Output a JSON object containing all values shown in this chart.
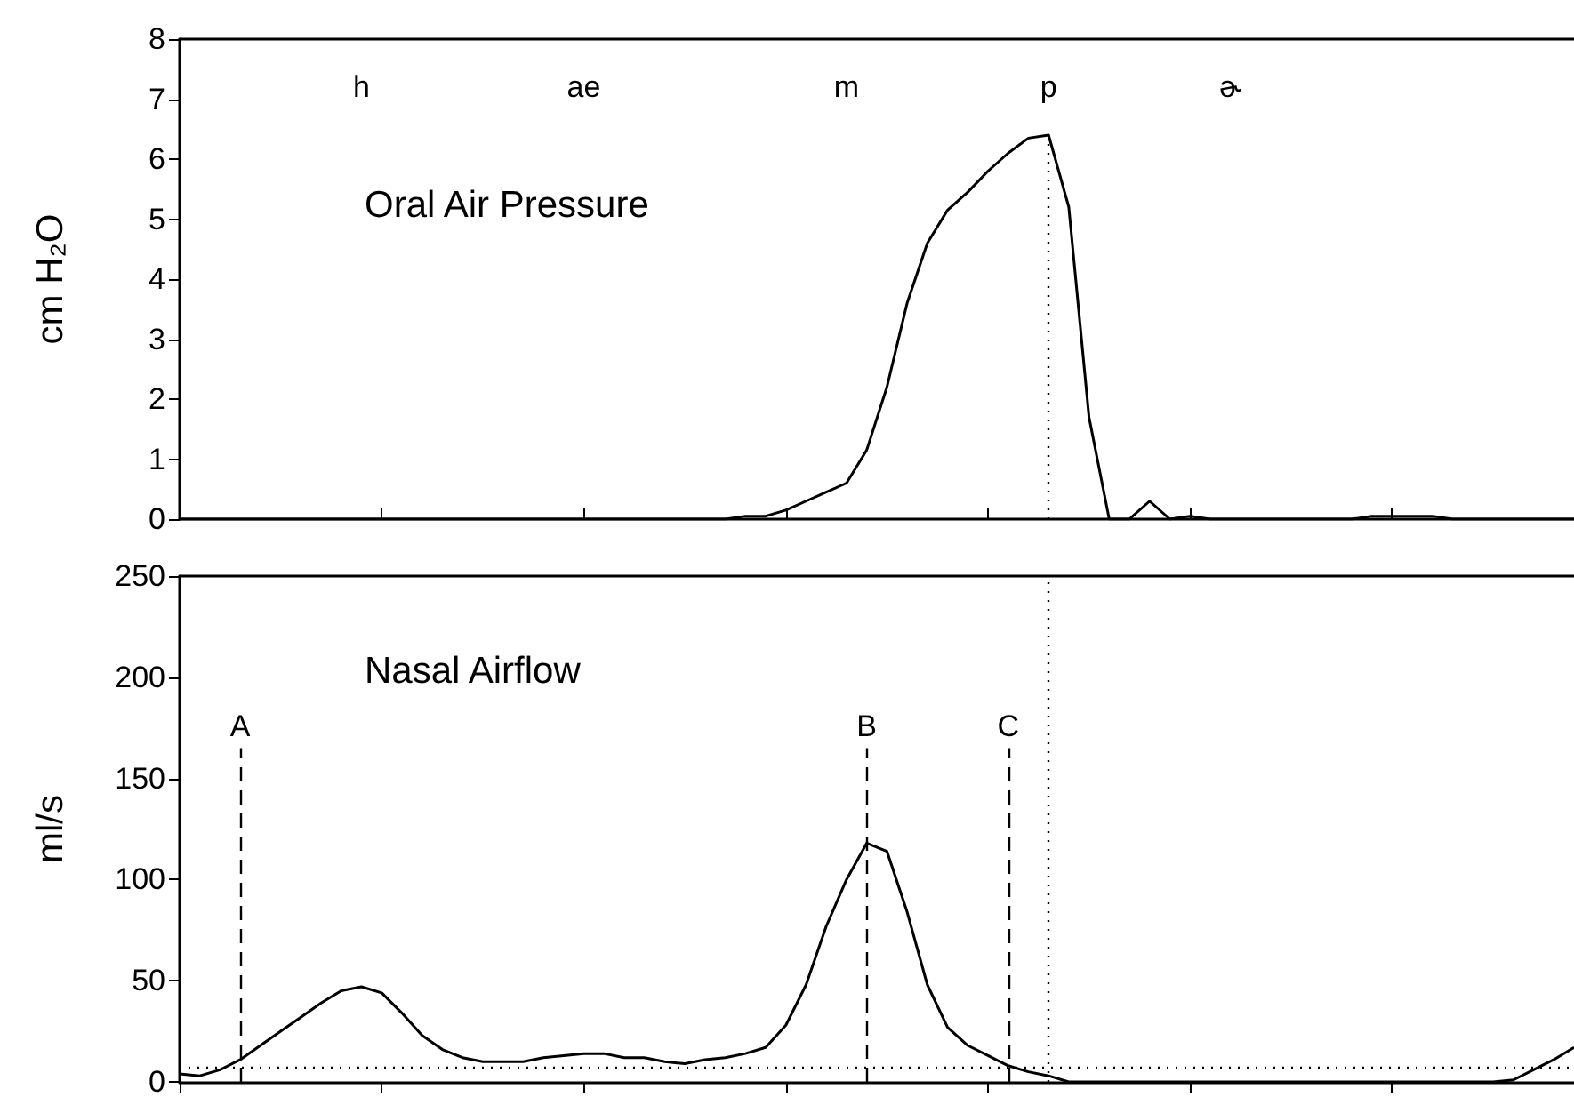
{
  "chart_data": [
    {
      "type": "line",
      "title": "Oral Air Pressure",
      "ylabel": "cm H₂O",
      "categories": [
        null,
        null,
        null,
        null,
        null,
        null,
        null,
        null,
        null,
        null,
        null,
        null,
        null,
        null,
        null,
        null,
        null,
        null,
        null,
        null,
        null,
        null,
        null,
        null,
        null,
        null,
        null,
        null,
        null,
        null,
        null,
        null,
        null,
        null,
        null,
        null,
        null,
        null,
        null,
        null,
        null,
        null,
        null,
        null,
        null,
        null,
        null,
        null,
        null,
        null,
        null,
        null,
        null,
        null,
        null,
        null,
        null,
        null,
        null,
        null,
        null,
        null,
        null,
        null,
        null,
        null,
        null,
        null,
        null,
        null
      ],
      "ylim": [
        0,
        8
      ],
      "yticks": [
        0,
        1,
        2,
        3,
        4,
        5,
        6,
        7,
        8
      ],
      "tick_labels": "y",
      "marker": "none",
      "line_style": "solid",
      "series": [
        {
          "color": "#000000",
          "values": [
            0,
            0,
            0,
            0,
            0,
            0,
            0,
            0,
            0,
            0,
            0,
            0,
            0,
            0,
            0,
            0,
            0,
            0,
            0,
            0,
            0,
            0,
            0,
            0,
            0,
            0,
            0,
            0,
            0.05,
            0.05,
            0.15,
            0.3,
            0.45,
            0.6,
            1.15,
            2.2,
            3.6,
            4.6,
            5.15,
            5.45,
            5.8,
            6.1,
            6.35,
            6.4,
            5.2,
            1.7,
            0,
            0,
            0.3,
            0,
            0.05,
            0,
            0,
            0,
            0,
            0,
            0,
            0,
            0,
            0.05,
            0.05,
            0.05,
            0.05,
            0,
            0,
            0,
            0,
            0,
            0,
            0
          ]
        }
      ],
      "annotations": [
        "h",
        "ae",
        "m",
        "p",
        "ɚ"
      ]
    },
    {
      "type": "line",
      "title": "Nasal Airflow",
      "ylabel": "ml/s",
      "categories": [
        null,
        null,
        null,
        null,
        null,
        null,
        null,
        null,
        null,
        null,
        null,
        null,
        null,
        null,
        null,
        null,
        null,
        null,
        null,
        null,
        null,
        null,
        null,
        null,
        null,
        null,
        null,
        null,
        null,
        null,
        null,
        null,
        null,
        null,
        null,
        null,
        null,
        null,
        null,
        null,
        null,
        null,
        null,
        null,
        null,
        null,
        null,
        null,
        null,
        null,
        null,
        null,
        null,
        null,
        null,
        null,
        null,
        null,
        null,
        null,
        null,
        null,
        null,
        null,
        null,
        null,
        null,
        null,
        null,
        null
      ],
      "ylim": [
        0,
        250
      ],
      "yticks": [
        0,
        50,
        100,
        150,
        200,
        250
      ],
      "tick_labels": "y",
      "marker": "none",
      "line_style": "solid",
      "series": [
        {
          "color": "#000000",
          "values": [
            4,
            3,
            6,
            11,
            18,
            25,
            32,
            39,
            45,
            47,
            44,
            34,
            23,
            16,
            12,
            10,
            10,
            10,
            12,
            13,
            14,
            14,
            12,
            12,
            10,
            9,
            11,
            12,
            14,
            17,
            28,
            48,
            77,
            100,
            118,
            114,
            84,
            48,
            27,
            18,
            13,
            8,
            5,
            3,
            0,
            0,
            0,
            0,
            0,
            0,
            0,
            0,
            0,
            0,
            0,
            0,
            0,
            0,
            0,
            0,
            0,
            0,
            0,
            0,
            0,
            0,
            1,
            6,
            11,
            17
          ]
        }
      ],
      "ref_lines": [
        {
          "axis": "y",
          "value": 7,
          "color": "#000000",
          "line_style": "dotted"
        }
      ],
      "annotations": [
        "A",
        "B",
        "C"
      ]
    }
  ]
}
